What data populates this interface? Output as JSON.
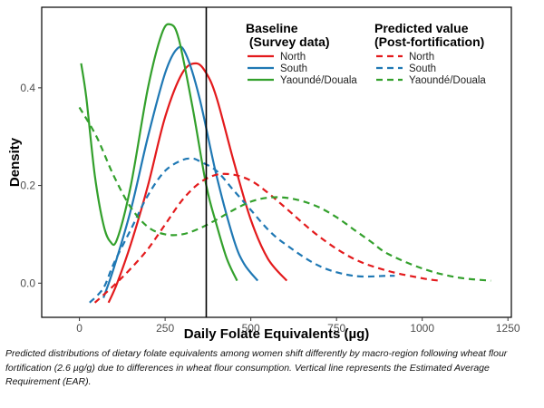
{
  "chart_data": {
    "type": "line",
    "xlabel": "Daily Folate Equivalents (µg)",
    "ylabel": "Density",
    "xlim": [
      -110,
      1260
    ],
    "ylim": [
      -0.07,
      0.565
    ],
    "x_ticks": [
      0,
      250,
      500,
      750,
      1000,
      1250
    ],
    "y_ticks": [
      0.0,
      0.2,
      0.4
    ],
    "x_tick_labels": [
      "0",
      "250",
      "500",
      "750",
      "1000",
      "1250"
    ],
    "y_tick_labels": [
      "0.0",
      "0.2",
      "0.4"
    ],
    "grid": false,
    "reference_line": {
      "x": 370
    },
    "legend": {
      "placement": "top-right",
      "groups": [
        {
          "title": "Baseline\n (Survey data)",
          "style": "solid",
          "entries": [
            "North",
            "South",
            "Yaoundé/Douala"
          ]
        },
        {
          "title": "Predicted value\n(Post-fortification)",
          "style": "dashed",
          "entries": [
            "North",
            "South",
            "Yaoundé/Douala"
          ]
        }
      ]
    },
    "series": [
      {
        "name": "North",
        "group": "Baseline (Survey data)",
        "color": "#e31a1c",
        "dash": false,
        "x": [
          85,
          110,
          150,
          200,
          250,
          300,
          340,
          370,
          400,
          450,
          500,
          550,
          605
        ],
        "y": [
          -0.04,
          0.0,
          0.08,
          0.2,
          0.34,
          0.43,
          0.45,
          0.43,
          0.38,
          0.25,
          0.13,
          0.05,
          0.005
        ]
      },
      {
        "name": "South",
        "group": "Baseline (Survey data)",
        "color": "#1f78b4",
        "dash": false,
        "x": [
          70,
          100,
          150,
          200,
          250,
          285,
          310,
          350,
          400,
          450,
          480,
          520
        ],
        "y": [
          -0.03,
          0.03,
          0.15,
          0.3,
          0.43,
          0.48,
          0.47,
          0.38,
          0.22,
          0.09,
          0.04,
          0.005
        ]
      },
      {
        "name": "Yaoundé/Douala",
        "group": "Baseline (Survey data)",
        "color": "#33a02c",
        "dash": false,
        "x": [
          5,
          20,
          45,
          70,
          90,
          110,
          150,
          200,
          240,
          265,
          290,
          330,
          370,
          400,
          430,
          460
        ],
        "y": [
          0.45,
          0.38,
          0.22,
          0.12,
          0.085,
          0.09,
          0.2,
          0.4,
          0.51,
          0.53,
          0.5,
          0.36,
          0.2,
          0.12,
          0.05,
          0.005
        ]
      },
      {
        "name": "North",
        "group": "Predicted value (Post-fortification)",
        "color": "#e31a1c",
        "dash": true,
        "x": [
          45,
          100,
          150,
          200,
          250,
          300,
          350,
          400,
          450,
          500,
          550,
          600,
          700,
          800,
          900,
          1000,
          1050
        ],
        "y": [
          -0.04,
          -0.005,
          0.03,
          0.07,
          0.12,
          0.17,
          0.205,
          0.222,
          0.222,
          0.21,
          0.185,
          0.155,
          0.095,
          0.05,
          0.025,
          0.01,
          0.005
        ]
      },
      {
        "name": "South",
        "group": "Predicted value (Post-fortification)",
        "color": "#1f78b4",
        "dash": true,
        "x": [
          30,
          70,
          100,
          150,
          200,
          250,
          300,
          330,
          350,
          400,
          450,
          500,
          550,
          600,
          700,
          800,
          900,
          920
        ],
        "y": [
          -0.04,
          -0.01,
          0.04,
          0.11,
          0.18,
          0.23,
          0.252,
          0.255,
          0.25,
          0.23,
          0.19,
          0.15,
          0.11,
          0.08,
          0.035,
          0.015,
          0.015,
          0.015
        ]
      },
      {
        "name": "Yaoundé/Douala",
        "group": "Predicted value (Post-fortification)",
        "color": "#33a02c",
        "dash": true,
        "x": [
          0,
          50,
          100,
          150,
          200,
          250,
          300,
          350,
          400,
          450,
          500,
          550,
          600,
          650,
          700,
          750,
          800,
          850,
          900,
          1000,
          1100,
          1200
        ],
        "y": [
          0.36,
          0.3,
          0.22,
          0.155,
          0.115,
          0.1,
          0.1,
          0.112,
          0.13,
          0.15,
          0.167,
          0.175,
          0.175,
          0.168,
          0.155,
          0.135,
          0.11,
          0.085,
          0.06,
          0.03,
          0.012,
          0.005
        ]
      }
    ]
  },
  "caption": "Predicted distributions of dietary folate equivalents among women shift differently by macro-region following wheat flour fortification (2.6 µg/g) due to differences in wheat flour consumption. Vertical line represents the Estimated Average Requirement (EAR)."
}
